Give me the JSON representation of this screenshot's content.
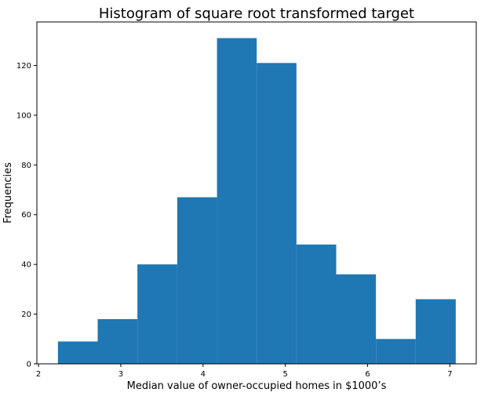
{
  "chart_data": {
    "type": "bar",
    "title": "Histogram of square root transformed target",
    "xlabel": "Median value of owner-occupied homes in $1000’s",
    "ylabel": "Frequencies",
    "xlim": [
      1.98,
      7.32
    ],
    "ylim": [
      0,
      137.5
    ],
    "xticks": [
      2,
      3,
      4,
      5,
      6,
      7
    ],
    "yticks": [
      0,
      20,
      40,
      60,
      80,
      100,
      120
    ],
    "bin_edges": [
      2.236,
      2.719,
      3.202,
      3.686,
      4.169,
      4.652,
      5.135,
      5.618,
      6.101,
      6.584,
      7.071
    ],
    "values": [
      9,
      18,
      40,
      67,
      131,
      121,
      48,
      36,
      10,
      26
    ],
    "color": "#1f77b4",
    "grid": false,
    "legend": "none"
  }
}
